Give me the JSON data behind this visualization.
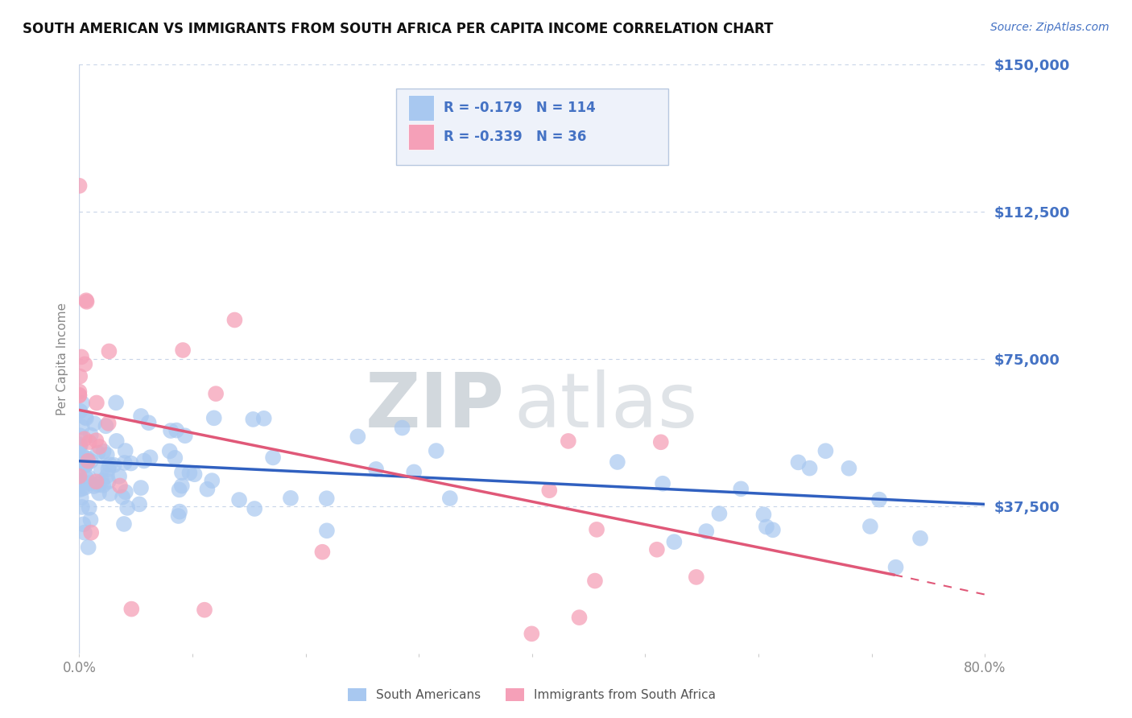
{
  "title": "SOUTH AMERICAN VS IMMIGRANTS FROM SOUTH AFRICA PER CAPITA INCOME CORRELATION CHART",
  "source_text": "Source: ZipAtlas.com",
  "ylabel": "Per Capita Income",
  "x_min": 0.0,
  "x_max": 0.8,
  "y_min": 0,
  "y_max": 150000,
  "yticks": [
    0,
    37500,
    75000,
    112500,
    150000
  ],
  "ytick_labels": [
    "",
    "$37,500",
    "$75,000",
    "$112,500",
    "$150,000"
  ],
  "series1_name": "South Americans",
  "series1_color": "#A8C8F0",
  "series1_R": -0.179,
  "series1_N": 114,
  "series2_name": "Immigrants from South Africa",
  "series2_color": "#F5A0B8",
  "series2_R": -0.339,
  "series2_N": 36,
  "trend1_color": "#3060C0",
  "trend2_color": "#E05878",
  "watermark_zip": "ZIP",
  "watermark_atlas": "atlas",
  "watermark_color": "#D0DCEE",
  "background_color": "#FFFFFF",
  "grid_color": "#C8D4E8",
  "title_color": "#111111",
  "axis_label_color": "#4472C4",
  "legend_bg": "#EEF2FA",
  "legend_border": "#B8C8E0"
}
